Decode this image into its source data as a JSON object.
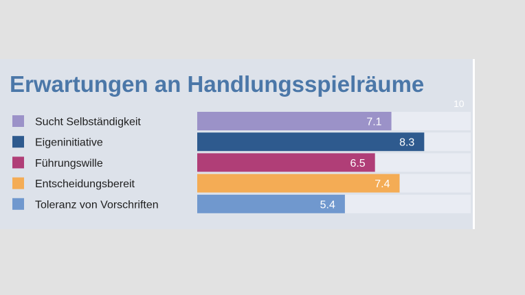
{
  "chart_data": {
    "type": "bar",
    "orientation": "horizontal",
    "title": "Erwartungen an Handlungsspielräume",
    "categories": [
      "Sucht Selbständigkeit",
      "Eigeninitiative",
      "Führungswille",
      "Entscheidungsbereit",
      "Toleranz von Vorschriften"
    ],
    "values": [
      7.1,
      8.3,
      6.5,
      7.4,
      5.4
    ],
    "value_labels": [
      "7.1",
      "8.3",
      "6.5",
      "7.4",
      "5.4"
    ],
    "colors": [
      "#9b92c8",
      "#2e5a8e",
      "#b03e77",
      "#f4ac55",
      "#7098ce"
    ],
    "track_color": "#e9ecf3",
    "xlim": [
      0,
      10
    ],
    "axis_max_label": "10",
    "legend_placement": "left",
    "grid": false
  }
}
